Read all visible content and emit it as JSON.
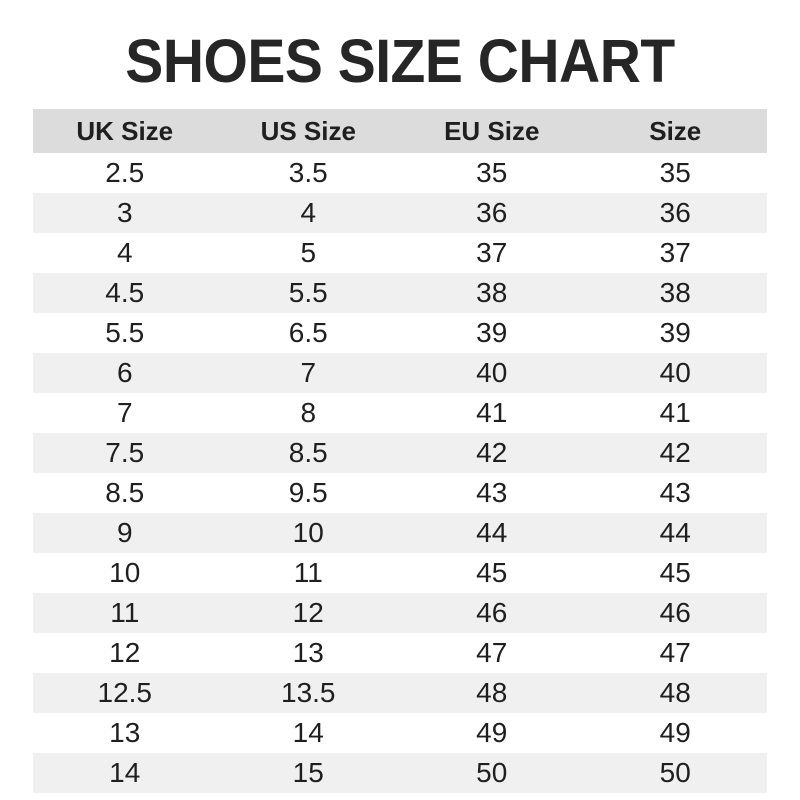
{
  "page": {
    "title": "SHOES SIZE CHART"
  },
  "chart_data": {
    "type": "table",
    "title": "SHOES SIZE CHART",
    "columns": [
      "UK Size",
      "US Size",
      "EU Size",
      "Size"
    ],
    "rows": [
      [
        "2.5",
        "3.5",
        "35",
        "35"
      ],
      [
        "3",
        "4",
        "36",
        "36"
      ],
      [
        "4",
        "5",
        "37",
        "37"
      ],
      [
        "4.5",
        "5.5",
        "38",
        "38"
      ],
      [
        "5.5",
        "6.5",
        "39",
        "39"
      ],
      [
        "6",
        "7",
        "40",
        "40"
      ],
      [
        "7",
        "8",
        "41",
        "41"
      ],
      [
        "7.5",
        "8.5",
        "42",
        "42"
      ],
      [
        "8.5",
        "9.5",
        "43",
        "43"
      ],
      [
        "9",
        "10",
        "44",
        "44"
      ],
      [
        "10",
        "11",
        "45",
        "45"
      ],
      [
        "11",
        "12",
        "46",
        "46"
      ],
      [
        "12",
        "13",
        "47",
        "47"
      ],
      [
        "12.5",
        "13.5",
        "48",
        "48"
      ],
      [
        "13",
        "14",
        "49",
        "49"
      ],
      [
        "14",
        "15",
        "50",
        "50"
      ]
    ],
    "layout": {
      "striped": true,
      "stripe_start": "white",
      "grid": false,
      "legend": "none"
    }
  },
  "colors": {
    "title_color": "#262626",
    "header_bg": "#dcdcdc",
    "row_stripe_bg": "#f0f0f0",
    "text_color": "#1f1f1f",
    "background": "#ffffff"
  }
}
